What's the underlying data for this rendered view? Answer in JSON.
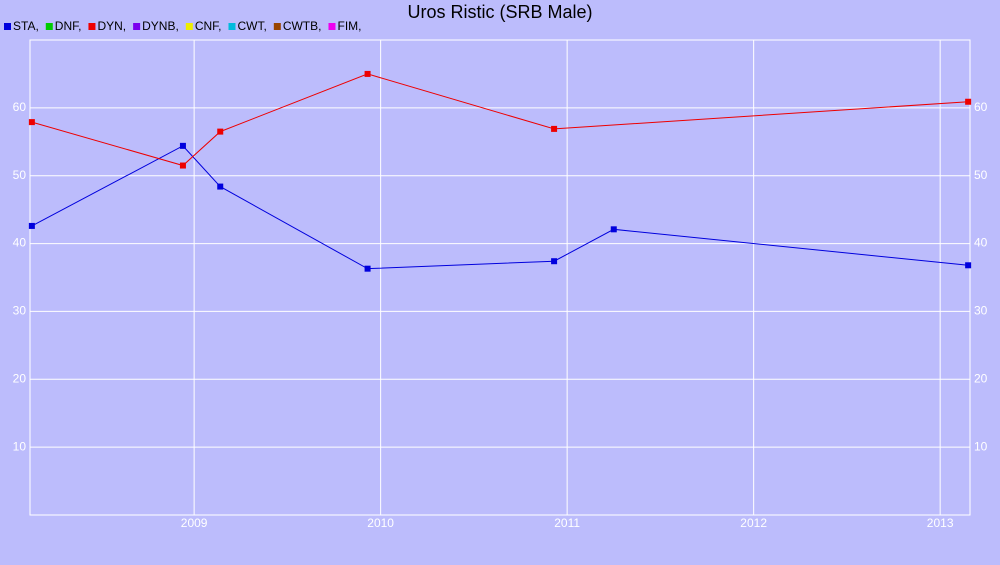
{
  "chart_data": {
    "type": "line",
    "title": "Uros Ristic (SRB Male)",
    "series": [
      {
        "name": "STA,",
        "color": "#0000dd",
        "x": [
          2008.13,
          2008.94,
          2009.14,
          2009.93,
          2010.93,
          2011.25,
          2013.15
        ],
        "values": [
          42.6,
          54.4,
          48.4,
          36.3,
          37.4,
          42.1,
          36.8
        ]
      },
      {
        "name": "DNF,",
        "color": "#00cc00",
        "x": [],
        "values": []
      },
      {
        "name": "DYN,",
        "color": "#ee0000",
        "x": [
          2008.13,
          2008.94,
          2009.14,
          2009.93,
          2010.93,
          2013.15
        ],
        "values": [
          57.9,
          51.5,
          56.5,
          65.0,
          56.9,
          60.9
        ]
      },
      {
        "name": "DYNB,",
        "color": "#7a00ee",
        "x": [],
        "values": []
      },
      {
        "name": "CNF,",
        "color": "#eeee00",
        "x": [],
        "values": []
      },
      {
        "name": "CWT,",
        "color": "#00bbdd",
        "x": [],
        "values": []
      },
      {
        "name": "CWTB,",
        "color": "#994400",
        "x": [],
        "values": []
      },
      {
        "name": "FIM,",
        "color": "#ee00ee",
        "x": [],
        "values": []
      }
    ],
    "xlim": [
      2008.12,
      2013.16
    ],
    "xticks": [
      2009,
      2010,
      2011,
      2012,
      2013
    ],
    "ylim": [
      0,
      70
    ],
    "yticks": [
      10,
      20,
      30,
      40,
      50,
      60
    ],
    "grid": true
  }
}
